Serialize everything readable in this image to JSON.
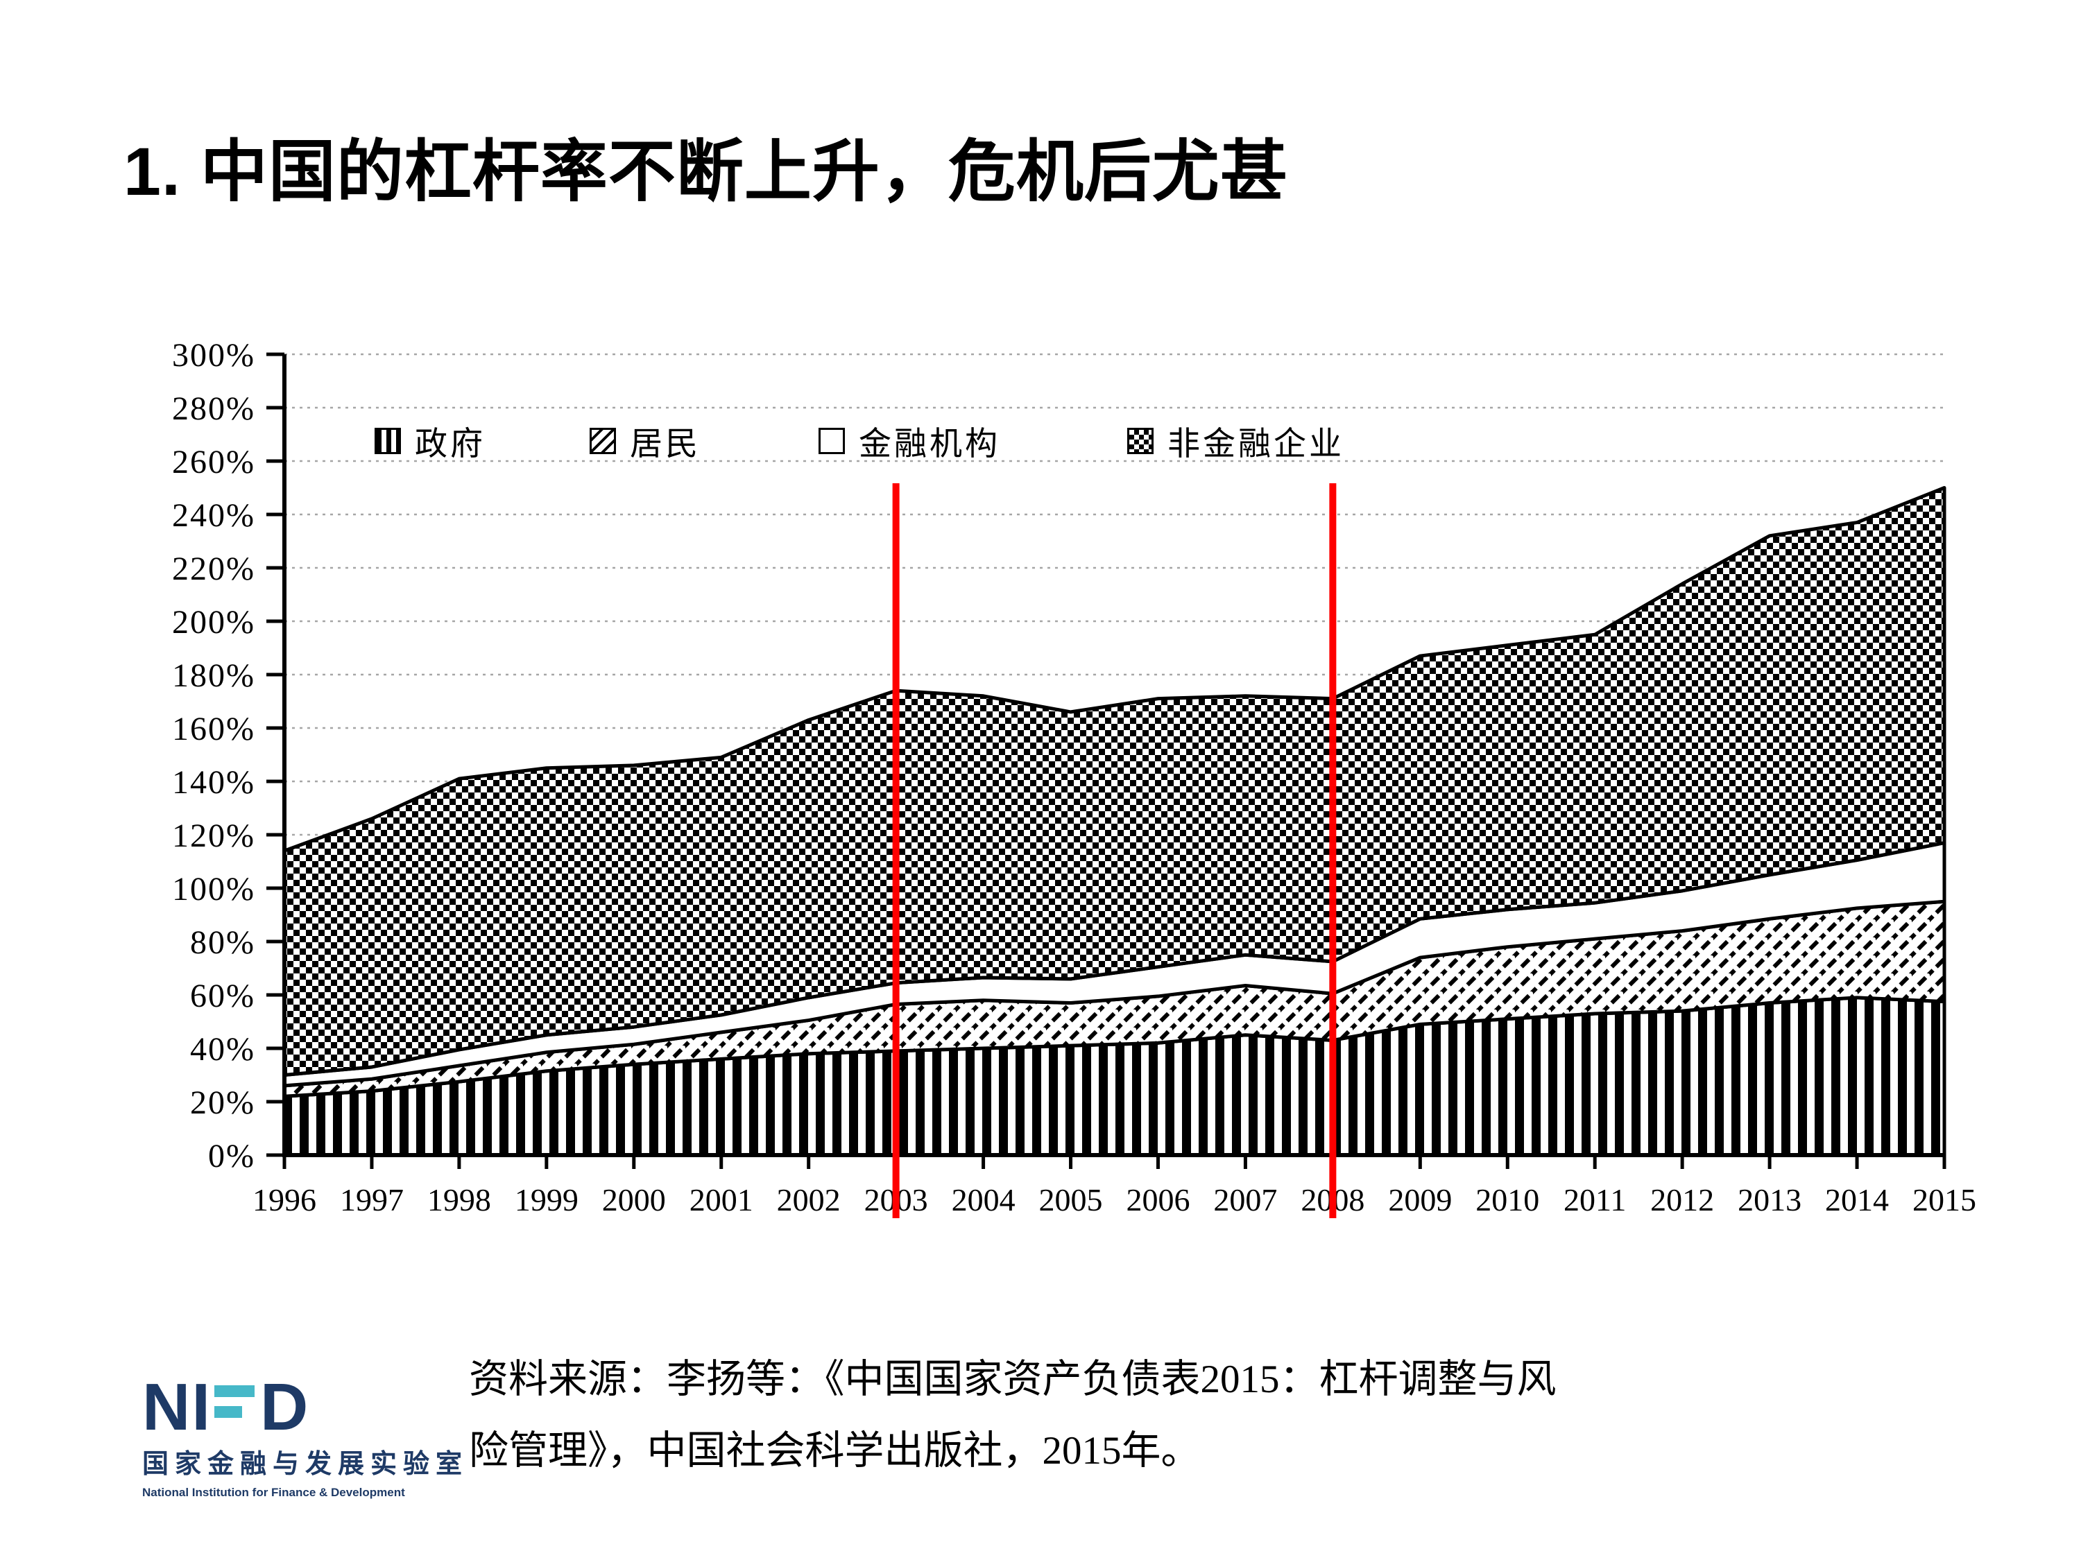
{
  "slide": {
    "title": "1. 中国的杠杆率不断上升，危机后尤甚",
    "source_line1": "资料来源：李扬等：《中国国家资产负债表2015：杠杆调整与风",
    "source_line2": "险管理》，中国社会科学出版社，2015年。"
  },
  "logo": {
    "n": "N",
    "i": "I",
    "d": "D",
    "cn": "国家金融与发展实验室",
    "en": "National Institution for Finance & Development",
    "navy": "#1e3a66",
    "teal": "#46b8c8"
  },
  "chart_data": {
    "type": "area",
    "stacked": true,
    "x": [
      1996,
      1997,
      1998,
      1999,
      2000,
      2001,
      2002,
      2003,
      2004,
      2005,
      2006,
      2007,
      2008,
      2009,
      2010,
      2011,
      2012,
      2013,
      2014,
      2015
    ],
    "series": [
      {
        "name": "政府",
        "pattern": "gov",
        "values": [
          22,
          24,
          27.5,
          31.5,
          34,
          36,
          38,
          39,
          40,
          41,
          42,
          45,
          43,
          49,
          51,
          53,
          54,
          57,
          59,
          57.5
        ]
      },
      {
        "name": "居民",
        "pattern": "res",
        "values": [
          4,
          4.5,
          6,
          7,
          7.5,
          10,
          12.5,
          17.5,
          18,
          16,
          17.5,
          18.5,
          17.5,
          25,
          27,
          28,
          30,
          31.5,
          33.5,
          37.5
        ]
      },
      {
        "name": "金融机构",
        "pattern": "fin",
        "values": [
          4,
          4.5,
          6,
          6.5,
          6.5,
          6.5,
          8.5,
          8,
          8.5,
          9,
          11,
          11.5,
          12,
          14.5,
          14,
          13.5,
          15,
          16.5,
          18,
          22
        ]
      },
      {
        "name": "非金融企业",
        "pattern": "nfc",
        "values": [
          84,
          93,
          101.5,
          100,
          98,
          96.5,
          104,
          109.5,
          105.5,
          100,
          100.5,
          97,
          98.5,
          98.5,
          99,
          100.5,
          115,
          127,
          126.5,
          133
        ]
      }
    ],
    "stacked_totals": [
      114,
      126,
      141,
      145,
      146,
      149,
      163,
      174,
      172,
      166,
      171,
      172,
      171,
      187,
      191,
      195,
      214,
      232,
      237,
      250
    ],
    "title": "",
    "xlabel": "",
    "ylabel": "",
    "ylim": [
      0,
      300
    ],
    "ytick_step": 20,
    "y_tick_labels": [
      "0%",
      "20%",
      "40%",
      "60%",
      "80%",
      "100%",
      "120%",
      "140%",
      "160%",
      "180%",
      "200%",
      "220%",
      "240%",
      "260%",
      "280%",
      "300%"
    ],
    "grid": "dotted-horizontal",
    "legend_position": "top-inside",
    "legend": [
      {
        "label": "政府",
        "pattern": "gov"
      },
      {
        "label": "居民",
        "pattern": "res"
      },
      {
        "label": "金融机构",
        "pattern": "fin"
      },
      {
        "label": "非金融企业",
        "pattern": "nfc"
      }
    ],
    "annotations": {
      "vlines": [
        {
          "x": 2003,
          "color": "#fe0000"
        },
        {
          "x": 2008,
          "color": "#fe0000"
        }
      ]
    }
  }
}
